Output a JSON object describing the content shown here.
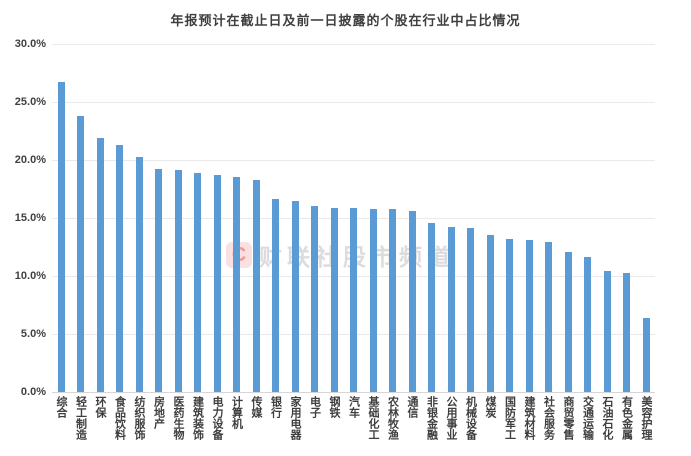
{
  "title": "年报预计在截止日及前一日披露的个股在行业中占比情况",
  "watermark": {
    "logo_letter": "C",
    "text": "财联社股市频道"
  },
  "colors": {
    "bar": "#5B9BD5",
    "gridline": "#e9e9e9",
    "baseline": "#d6d6d6",
    "axis_text": "#404040",
    "watermark_text": "#bebebe",
    "watermark_logo": "#f0a09e"
  },
  "chart_data": {
    "type": "bar",
    "title": "年报预计在截止日及前一日披露的个股在行业中占比情况",
    "categories": [
      "综合",
      "轻工制造",
      "环保",
      "食品饮料",
      "纺织服饰",
      "房地产",
      "医药生物",
      "建筑装饰",
      "电力设备",
      "计算机",
      "传媒",
      "银行",
      "家用电器",
      "电子",
      "钢铁",
      "汽车",
      "基础化工",
      "农林牧渔",
      "通信",
      "非银金融",
      "公用事业",
      "机械设备",
      "煤炭",
      "国防军工",
      "建筑材料",
      "社会服务",
      "商贸零售",
      "交通运输",
      "石油石化",
      "有色金属",
      "美容护理"
    ],
    "values": [
      26.7,
      23.8,
      21.9,
      21.3,
      20.3,
      19.2,
      19.1,
      18.9,
      18.7,
      18.5,
      18.3,
      16.6,
      16.5,
      16.0,
      15.9,
      15.9,
      15.8,
      15.8,
      15.6,
      14.6,
      14.2,
      14.1,
      13.5,
      13.2,
      13.1,
      12.9,
      12.1,
      11.6,
      10.4,
      10.3,
      6.4
    ],
    "xlabel": "",
    "ylabel": "",
    "ylim": [
      0,
      30
    ],
    "ytick_step": 5,
    "ytick_labels": [
      "0.0%",
      "5.0%",
      "10.0%",
      "15.0%",
      "20.0%",
      "25.0%",
      "30.0%"
    ],
    "grid": true,
    "legend": false,
    "bar_orientation": "vertical",
    "value_unit": "percent"
  }
}
